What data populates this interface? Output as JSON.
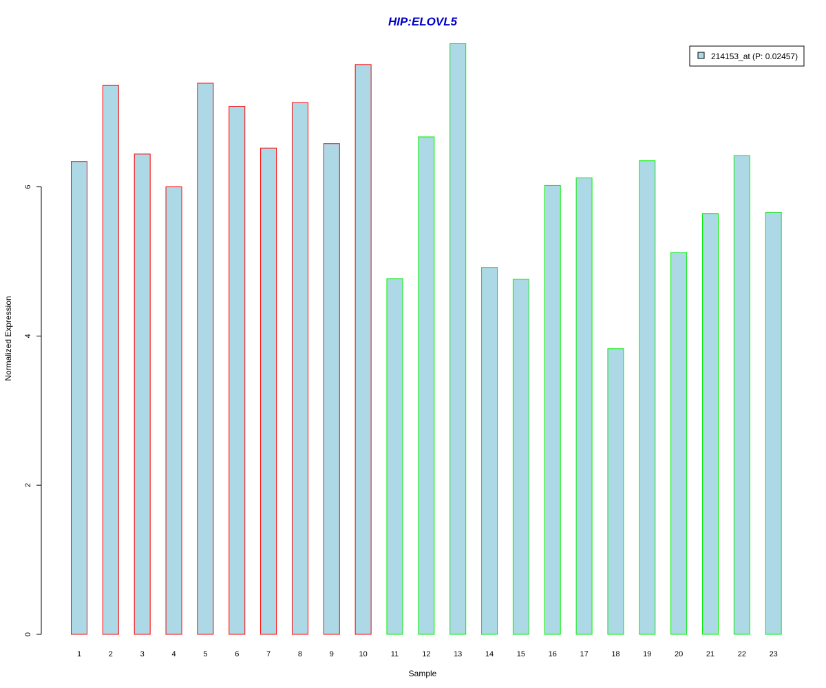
{
  "chart_data": {
    "type": "bar",
    "title": "HIP:ELOVL5",
    "xlabel": "Sample",
    "ylabel": "Normalized Expression",
    "categories": [
      "1",
      "2",
      "3",
      "4",
      "5",
      "6",
      "7",
      "8",
      "9",
      "10",
      "11",
      "12",
      "13",
      "14",
      "15",
      "16",
      "17",
      "18",
      "19",
      "20",
      "21",
      "22",
      "23"
    ],
    "series": [
      {
        "name": "214153_at (P: 0.02457)",
        "values": [
          6.34,
          7.36,
          6.44,
          6.0,
          7.39,
          7.08,
          6.52,
          7.13,
          6.58,
          7.64,
          4.77,
          6.67,
          7.92,
          4.92,
          4.76,
          6.02,
          6.12,
          3.83,
          6.35,
          5.12,
          5.64,
          6.42,
          5.66
        ]
      }
    ],
    "group_border_colors": [
      "#ff0000",
      "#ff0000",
      "#ff0000",
      "#ff0000",
      "#ff0000",
      "#ff0000",
      "#ff0000",
      "#ff0000",
      "#ff0000",
      "#ff0000",
      "#00ee00",
      "#00ee00",
      "#00ee00",
      "#00ee00",
      "#00ee00",
      "#00ee00",
      "#00ee00",
      "#00ee00",
      "#00ee00",
      "#00ee00",
      "#00ee00",
      "#00ee00",
      "#00ee00"
    ],
    "bar_fill_color": "#add8e6",
    "title_color": "#0000cc",
    "yticks": [
      0,
      2,
      4,
      6
    ],
    "ylim": [
      0,
      8
    ],
    "grid": false,
    "legend_position": "top-right"
  }
}
